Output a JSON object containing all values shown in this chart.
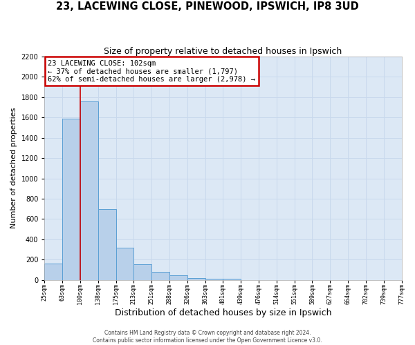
{
  "title": "23, LACEWING CLOSE, PINEWOOD, IPSWICH, IP8 3UD",
  "subtitle": "Size of property relative to detached houses in Ipswich",
  "xlabel": "Distribution of detached houses by size in Ipswich",
  "ylabel": "Number of detached properties",
  "footer_line1": "Contains HM Land Registry data © Crown copyright and database right 2024.",
  "footer_line2": "Contains public sector information licensed under the Open Government Licence v3.0.",
  "bin_labels": [
    "25sqm",
    "63sqm",
    "100sqm",
    "138sqm",
    "175sqm",
    "213sqm",
    "251sqm",
    "288sqm",
    "326sqm",
    "363sqm",
    "401sqm",
    "439sqm",
    "476sqm",
    "514sqm",
    "551sqm",
    "589sqm",
    "627sqm",
    "664sqm",
    "702sqm",
    "739sqm",
    "777sqm"
  ],
  "bar_heights": [
    160,
    1590,
    1760,
    700,
    315,
    155,
    80,
    45,
    20,
    12,
    10,
    0,
    0,
    0,
    0,
    0,
    0,
    0,
    0,
    0
  ],
  "bar_color": "#b8d0ea",
  "bar_edge_color": "#5a9fd4",
  "property_bin_index": 2,
  "annotation_title": "23 LACEWING CLOSE: 102sqm",
  "annotation_line2": "← 37% of detached houses are smaller (1,797)",
  "annotation_line3": "62% of semi-detached houses are larger (2,978) →",
  "annotation_box_color": "white",
  "annotation_box_edge_color": "#cc0000",
  "red_line_color": "#cc0000",
  "ylim": [
    0,
    2200
  ],
  "yticks": [
    0,
    200,
    400,
    600,
    800,
    1000,
    1200,
    1400,
    1600,
    1800,
    2000,
    2200
  ],
  "grid_color": "#c8d8ec",
  "background_color": "#dce8f5",
  "fig_background": "#ffffff"
}
